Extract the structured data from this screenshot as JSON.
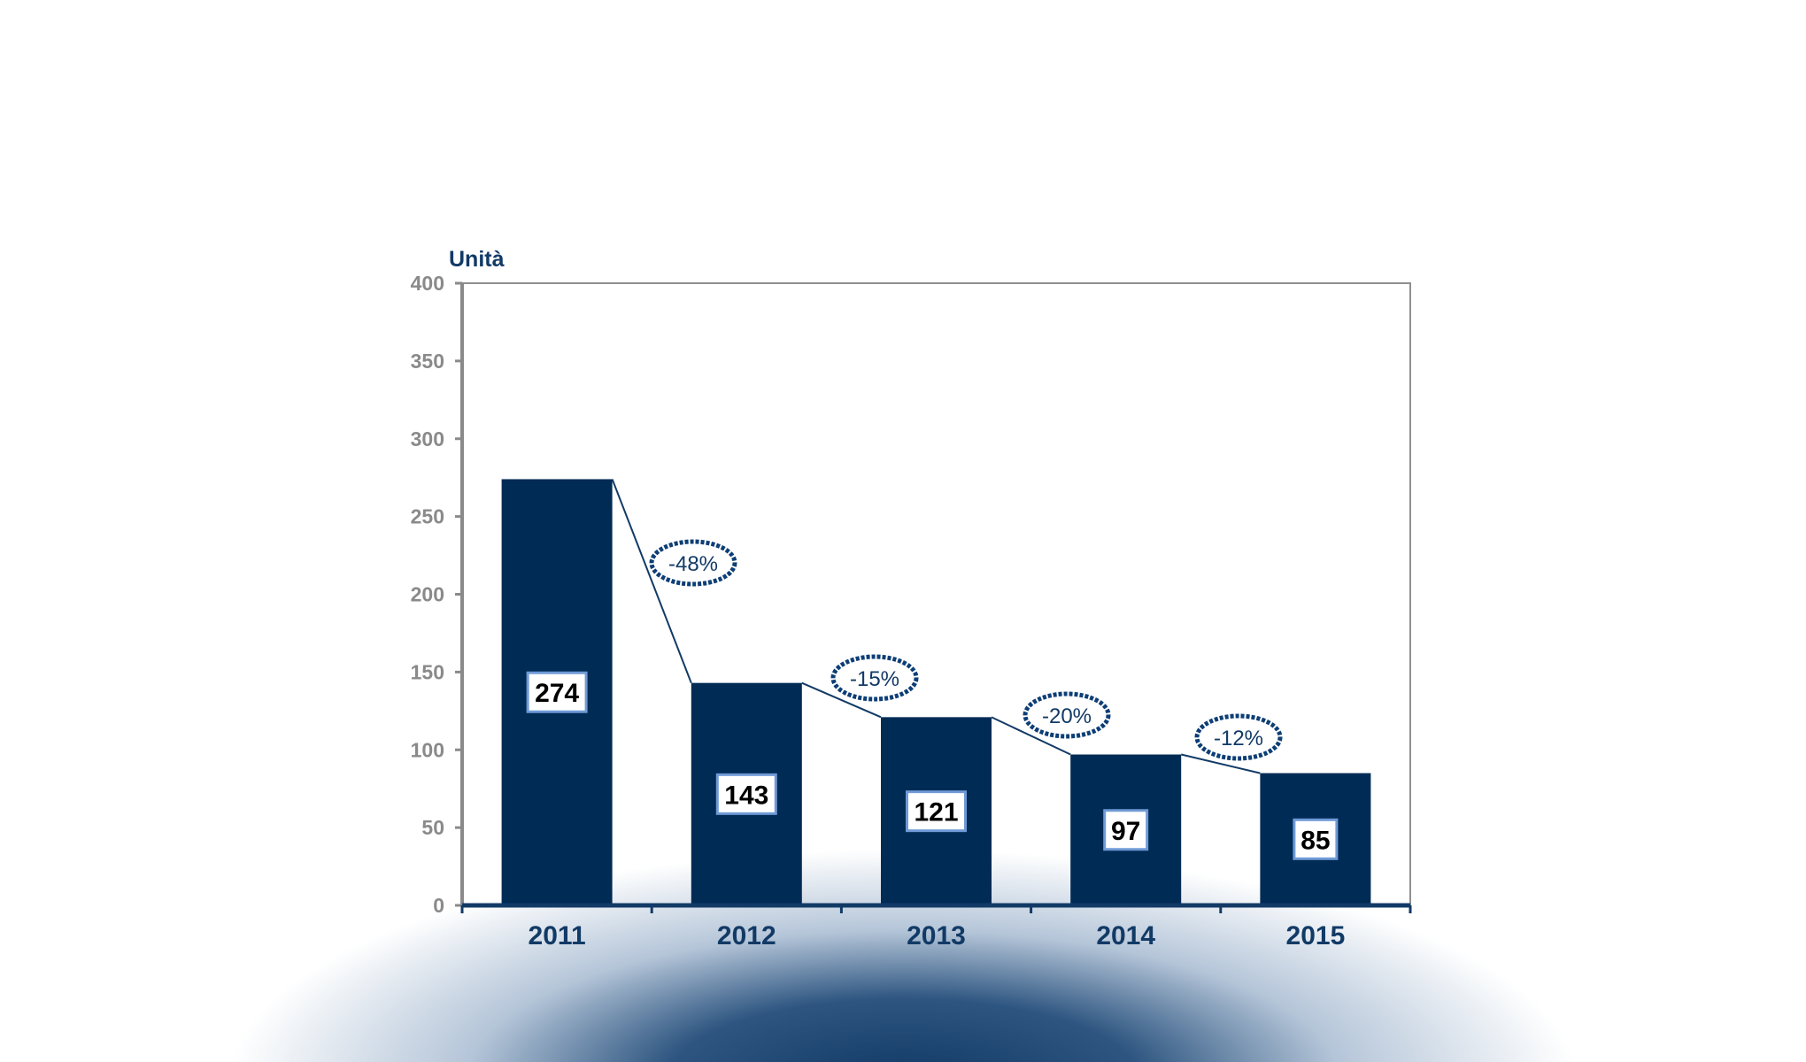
{
  "colors": {
    "bar": "#002b55",
    "accent": "#123a66",
    "axis": "#8a8a8a",
    "label_box_border": "#6f9ad6",
    "badge_border": "#0d3e75"
  },
  "chart_data": {
    "type": "bar",
    "unit_label": "Unità",
    "categories": [
      "2011",
      "2012",
      "2013",
      "2014",
      "2015"
    ],
    "values": [
      274,
      143,
      121,
      97,
      85
    ],
    "value_labels": [
      "274",
      "143",
      "121",
      "97",
      "85"
    ],
    "changes": [
      "-48%",
      "-15%",
      "-20%",
      "-12%"
    ],
    "yticks": [
      0,
      50,
      100,
      150,
      200,
      250,
      300,
      350,
      400
    ],
    "ylim": [
      0,
      400
    ],
    "grid": false,
    "legend": "none"
  }
}
